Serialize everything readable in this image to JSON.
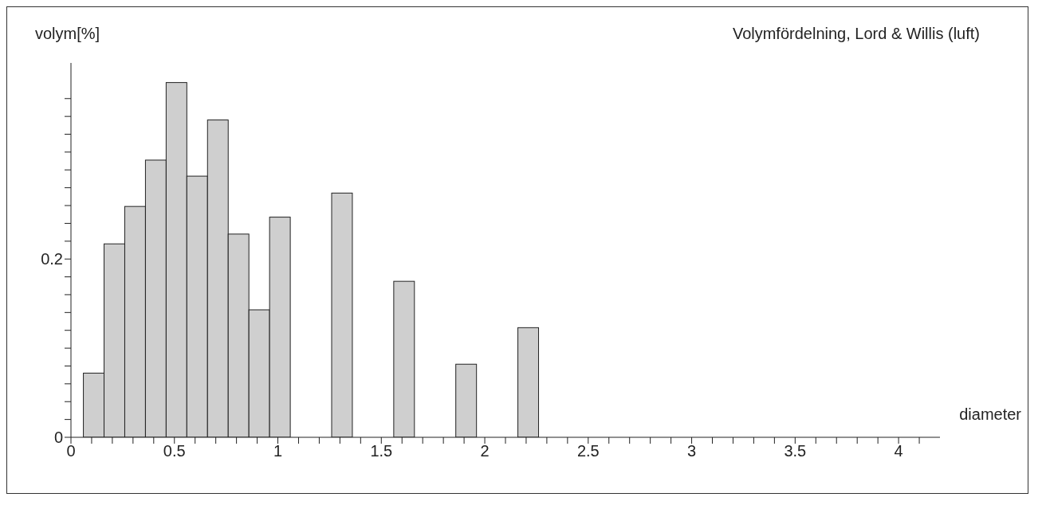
{
  "chart_data": {
    "type": "histogram",
    "title": "Volymfördelning, Lord & Willis (luft)",
    "xlabel": "diameter",
    "ylabel": "volym[%]",
    "bins": [
      0.06,
      0.16,
      0.26,
      0.36,
      0.46,
      0.56,
      0.66,
      0.76,
      0.86,
      0.96,
      1.06,
      1.16,
      1.26,
      1.36,
      1.46,
      1.56,
      1.66,
      1.76,
      1.86,
      1.96,
      2.06,
      2.16,
      2.26
    ],
    "values": [
      0.072,
      0.217,
      0.259,
      0.311,
      0.398,
      0.293,
      0.356,
      0.228,
      0.143,
      0.247,
      0,
      0,
      0.274,
      0,
      0,
      0.175,
      0,
      0,
      0.082,
      0,
      0,
      0.123
    ],
    "color": "#cfcfcf",
    "xlim": [
      0,
      4.2
    ],
    "xticks": [
      0,
      {
        "value": 0.1,
        "label": null
      },
      {
        "value": 0.2,
        "label": null
      },
      {
        "value": 0.3,
        "label": null
      },
      {
        "value": 0.4,
        "label": null
      },
      0.5,
      {
        "value": 0.6,
        "label": null
      },
      {
        "value": 0.7,
        "label": null
      },
      {
        "value": 0.8,
        "label": null
      },
      {
        "value": 0.9,
        "label": null
      },
      1,
      {
        "value": 1.1,
        "label": null
      },
      {
        "value": 1.2,
        "label": null
      },
      {
        "value": 1.3,
        "label": null
      },
      {
        "value": 1.4,
        "label": null
      },
      1.5,
      {
        "value": 1.6,
        "label": null
      },
      {
        "value": 1.7,
        "label": null
      },
      {
        "value": 1.8,
        "label": null
      },
      {
        "value": 1.9,
        "label": null
      },
      2,
      {
        "value": 2.1,
        "label": null
      },
      {
        "value": 2.2,
        "label": null
      },
      {
        "value": 2.3,
        "label": null
      },
      {
        "value": 2.4,
        "label": null
      },
      2.5,
      {
        "value": 2.6,
        "label": null
      },
      {
        "value": 2.7,
        "label": null
      },
      {
        "value": 2.8,
        "label": null
      },
      {
        "value": 2.9,
        "label": null
      },
      3,
      {
        "value": 3.1,
        "label": null
      },
      {
        "value": 3.2,
        "label": null
      },
      {
        "value": 3.3,
        "label": null
      },
      {
        "value": 3.4,
        "label": null
      },
      3.5,
      {
        "value": 3.6,
        "label": null
      },
      {
        "value": 3.7,
        "label": null
      },
      {
        "value": 3.8,
        "label": null
      },
      {
        "value": 3.9,
        "label": null
      },
      4,
      {
        "value": 4.1,
        "label": null
      }
    ],
    "ylim": [
      0,
      0.42
    ],
    "yticks": [
      0,
      {
        "value": 0.02,
        "label": null
      },
      {
        "value": 0.04,
        "label": null
      },
      {
        "value": 0.06,
        "label": null
      },
      {
        "value": 0.08,
        "label": null
      },
      {
        "value": 0.1,
        "label": null
      },
      {
        "value": 0.12,
        "label": null
      },
      {
        "value": 0.14,
        "label": null
      },
      {
        "value": 0.16,
        "label": null
      },
      {
        "value": 0.18,
        "label": null
      },
      0.2,
      {
        "value": 0.22,
        "label": null
      },
      {
        "value": 0.24,
        "label": null
      },
      {
        "value": 0.26,
        "label": null
      },
      {
        "value": 0.28,
        "label": null
      },
      {
        "value": 0.3,
        "label": null
      },
      {
        "value": 0.32,
        "label": null
      },
      {
        "value": 0.34,
        "label": null
      },
      {
        "value": 0.36,
        "label": null
      },
      {
        "value": 0.38,
        "label": null
      }
    ],
    "grid": false,
    "legend": false
  }
}
